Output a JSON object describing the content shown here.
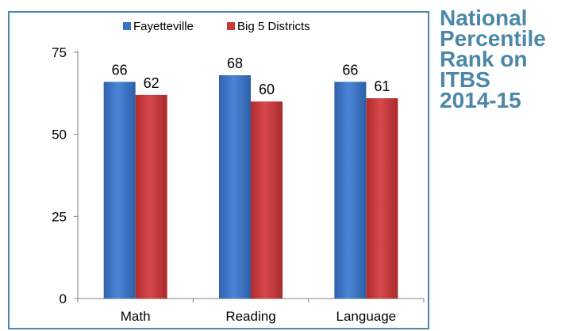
{
  "side_title": {
    "lines": [
      "National",
      "Percentile",
      "Rank on",
      "ITBS",
      "2014-15"
    ]
  },
  "colors": {
    "fayetteville": "#3a73c4",
    "big5": "#c9383a",
    "title": "#4a87a8",
    "frame": "#4a87a8"
  },
  "chart_data": {
    "type": "bar",
    "categories": [
      "Math",
      "Reading",
      "Language"
    ],
    "series": [
      {
        "name": "Fayetteville",
        "values": [
          66,
          68,
          66
        ]
      },
      {
        "name": "Big 5 Districts",
        "values": [
          62,
          60,
          61
        ]
      }
    ],
    "yticks": [
      "0",
      "25",
      "50",
      "75"
    ],
    "ylim": [
      0,
      75
    ],
    "grid": false,
    "legend": "top-center",
    "data_labels": true
  }
}
